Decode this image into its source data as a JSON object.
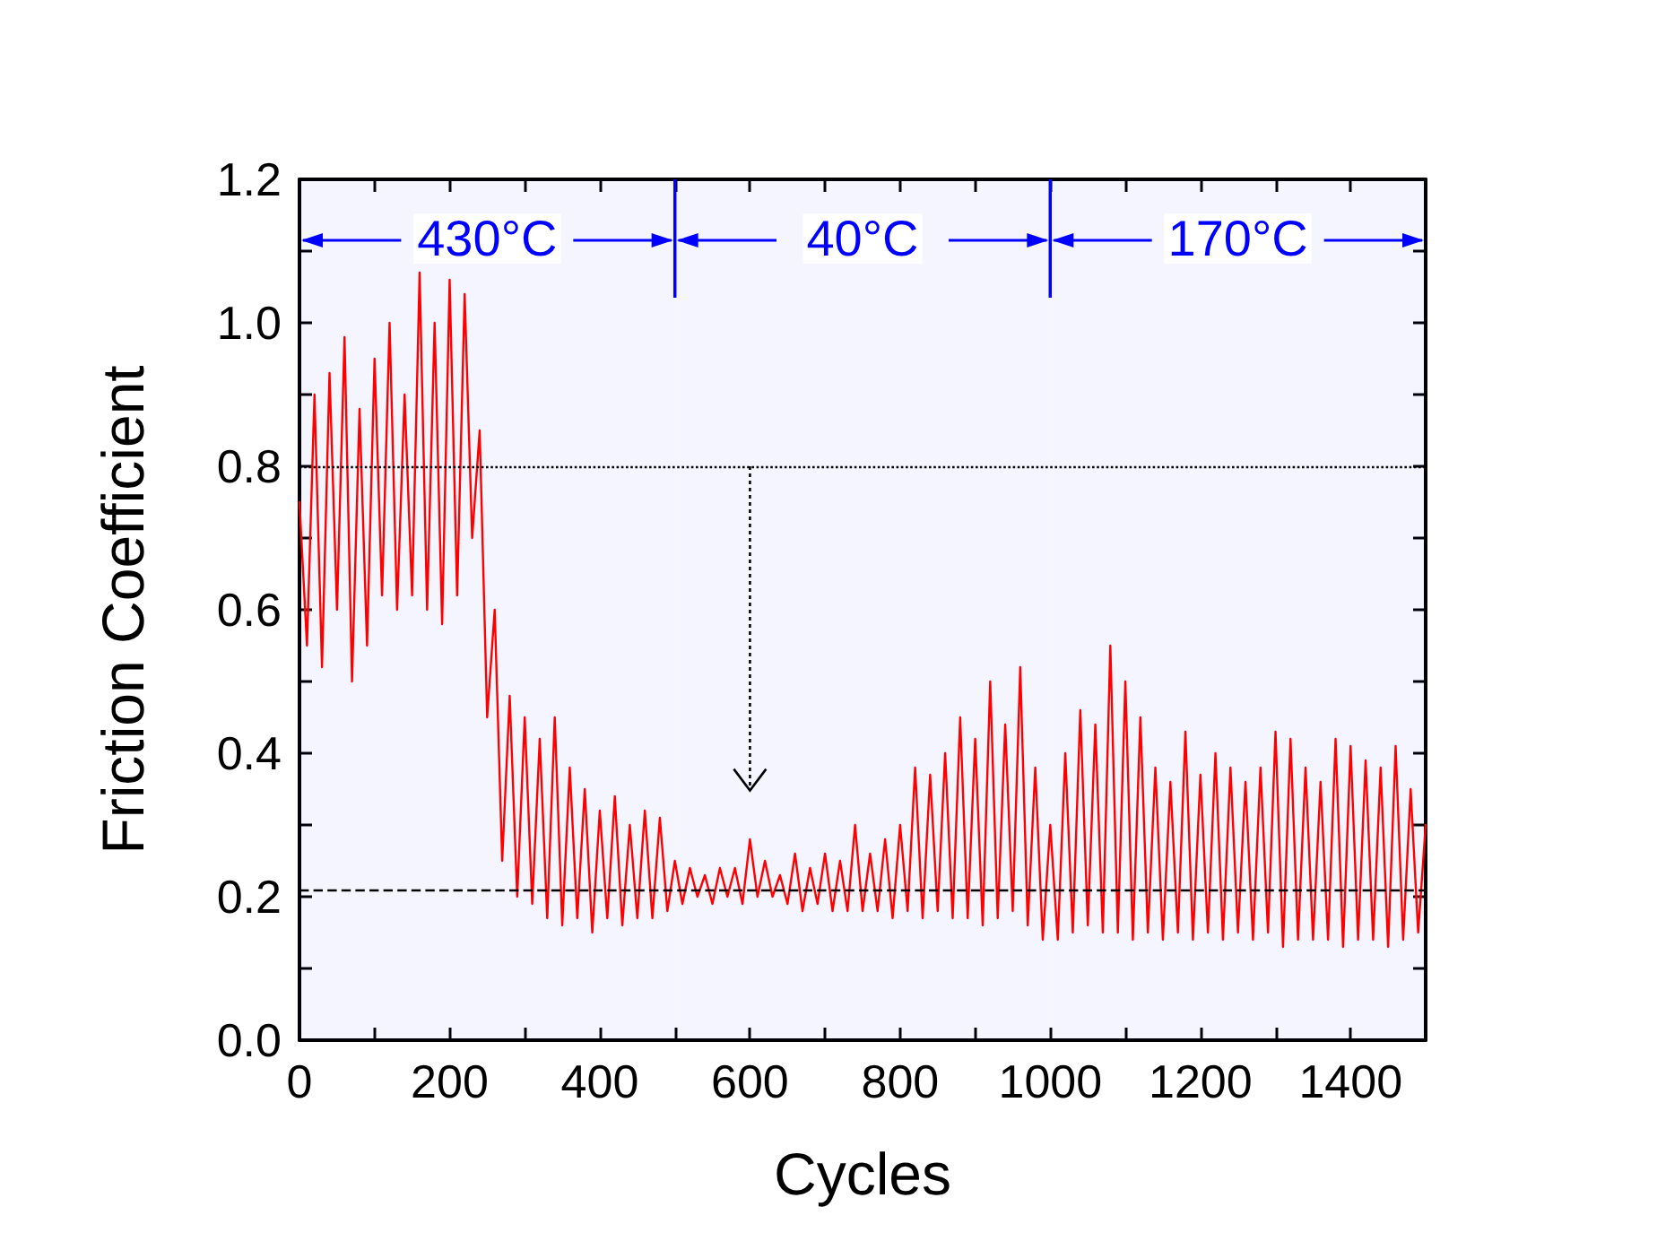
{
  "chart_data": {
    "type": "line",
    "xlabel": "Cycles",
    "ylabel": "Friction Coefficient",
    "x": [
      0,
      10,
      20,
      30,
      40,
      50,
      60,
      70,
      80,
      90,
      100,
      110,
      120,
      130,
      140,
      150,
      160,
      170,
      180,
      190,
      200,
      210,
      220,
      230,
      240,
      250,
      260,
      270,
      280,
      290,
      300,
      310,
      320,
      330,
      340,
      350,
      360,
      370,
      380,
      390,
      400,
      410,
      420,
      430,
      440,
      450,
      460,
      470,
      480,
      490,
      500,
      510,
      520,
      530,
      540,
      550,
      560,
      570,
      580,
      590,
      600,
      610,
      620,
      630,
      640,
      650,
      660,
      670,
      680,
      690,
      700,
      710,
      720,
      730,
      740,
      750,
      760,
      770,
      780,
      790,
      800,
      810,
      820,
      830,
      840,
      850,
      860,
      870,
      880,
      890,
      900,
      910,
      920,
      930,
      940,
      950,
      960,
      970,
      980,
      990,
      1000,
      1010,
      1020,
      1030,
      1040,
      1050,
      1060,
      1070,
      1080,
      1090,
      1100,
      1110,
      1120,
      1130,
      1140,
      1150,
      1160,
      1170,
      1180,
      1190,
      1200,
      1210,
      1220,
      1230,
      1240,
      1250,
      1260,
      1270,
      1280,
      1290,
      1300,
      1310,
      1320,
      1330,
      1340,
      1350,
      1360,
      1370,
      1380,
      1390,
      1400,
      1410,
      1420,
      1430,
      1440,
      1450,
      1460,
      1470,
      1480,
      1490,
      1500
    ],
    "series": [
      {
        "color": "#ff0000",
        "values": [
          0.75,
          0.55,
          0.9,
          0.52,
          0.93,
          0.6,
          0.98,
          0.5,
          0.88,
          0.55,
          0.95,
          0.62,
          1.0,
          0.6,
          0.9,
          0.62,
          1.07,
          0.6,
          1.0,
          0.58,
          1.06,
          0.62,
          1.04,
          0.7,
          0.85,
          0.45,
          0.6,
          0.25,
          0.48,
          0.2,
          0.45,
          0.19,
          0.42,
          0.17,
          0.45,
          0.16,
          0.38,
          0.17,
          0.35,
          0.15,
          0.32,
          0.17,
          0.34,
          0.16,
          0.3,
          0.17,
          0.32,
          0.17,
          0.31,
          0.18,
          0.25,
          0.19,
          0.24,
          0.2,
          0.23,
          0.19,
          0.24,
          0.2,
          0.24,
          0.19,
          0.28,
          0.2,
          0.25,
          0.2,
          0.23,
          0.19,
          0.26,
          0.18,
          0.24,
          0.19,
          0.26,
          0.18,
          0.25,
          0.18,
          0.3,
          0.18,
          0.26,
          0.18,
          0.28,
          0.17,
          0.3,
          0.18,
          0.38,
          0.17,
          0.37,
          0.18,
          0.4,
          0.17,
          0.45,
          0.17,
          0.42,
          0.16,
          0.5,
          0.17,
          0.44,
          0.18,
          0.52,
          0.16,
          0.38,
          0.14,
          0.3,
          0.14,
          0.4,
          0.15,
          0.46,
          0.16,
          0.44,
          0.15,
          0.55,
          0.15,
          0.5,
          0.14,
          0.45,
          0.15,
          0.38,
          0.14,
          0.36,
          0.15,
          0.43,
          0.14,
          0.37,
          0.15,
          0.4,
          0.14,
          0.38,
          0.15,
          0.36,
          0.14,
          0.38,
          0.15,
          0.43,
          0.13,
          0.42,
          0.14,
          0.38,
          0.14,
          0.36,
          0.14,
          0.42,
          0.13,
          0.41,
          0.14,
          0.39,
          0.14,
          0.38,
          0.13,
          0.41,
          0.14,
          0.35,
          0.15,
          0.3
        ]
      }
    ],
    "xlim": [
      0,
      1500
    ],
    "xticks": [
      0,
      {
        "value": 100,
        "label": null
      },
      200,
      {
        "value": 300,
        "label": null
      },
      400,
      {
        "value": 500,
        "label": null
      },
      600,
      {
        "value": 700,
        "label": null
      },
      800,
      {
        "value": 900,
        "label": null
      },
      1000,
      {
        "value": 1100,
        "label": null
      },
      1200,
      {
        "value": 1300,
        "label": null
      },
      1400,
      {
        "value": 1500,
        "label": null
      }
    ],
    "ylim": [
      0,
      1.2
    ],
    "yticks": [
      {
        "value": 0,
        "label": "0.0"
      },
      {
        "value": 0.1,
        "label": null
      },
      {
        "value": 0.2,
        "label": "0.2"
      },
      {
        "value": 0.3,
        "label": null
      },
      {
        "value": 0.4,
        "label": "0.4"
      },
      {
        "value": 0.5,
        "label": null
      },
      {
        "value": 0.6,
        "label": "0.6"
      },
      {
        "value": 0.7,
        "label": null
      },
      {
        "value": 0.8,
        "label": "0.8"
      },
      {
        "value": 0.9,
        "label": null
      },
      {
        "value": 1.0,
        "label": "1.0"
      },
      {
        "value": 1.1,
        "label": null
      },
      {
        "value": 1.2,
        "label": "1.2"
      }
    ],
    "ref_lines": [
      {
        "axis": "y",
        "value": 0.8,
        "color": "#000000",
        "line_style": "dotted"
      },
      {
        "axis": "y",
        "value": 0.21,
        "color": "#000000",
        "line_style": "dashed"
      }
    ],
    "bands": [
      {
        "axis": "x",
        "from": 0,
        "to": 500,
        "label": "430°C",
        "color": "#0000ff"
      },
      {
        "axis": "x",
        "from": 500,
        "to": 1000,
        "label": "40°C",
        "color": "#0000ff"
      },
      {
        "axis": "x",
        "from": 1000,
        "to": 1500,
        "label": "170°C",
        "color": "#0000ff"
      }
    ],
    "grid": false,
    "marker": "none",
    "line_style": "solid"
  }
}
